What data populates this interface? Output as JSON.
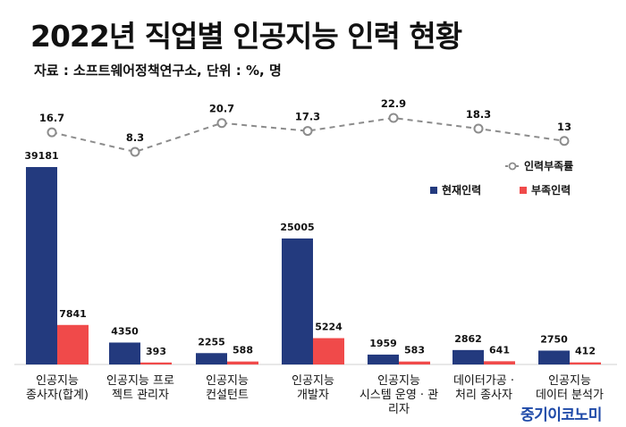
{
  "header": {
    "title": "2022년 직업별 인공지능 인력 현황",
    "subtitle": "자료 : 소프트웨어정책연구소, 단위 : %, 명"
  },
  "watermark": "중기이코노미",
  "chart_data": {
    "type": "bar",
    "categories": [
      [
        "인공지능",
        "종사자(합계)"
      ],
      [
        "인공지능 프로",
        "젝트 관리자"
      ],
      [
        "인공지능",
        "컨설턴트"
      ],
      [
        "인공지능",
        "개발자"
      ],
      [
        "인공지능",
        "시스템 운영 · 관",
        "리자"
      ],
      [
        "데이터가공 ·",
        "처리 종사자"
      ],
      [
        "인공지능",
        "데이터 분석가"
      ]
    ],
    "series": [
      {
        "name": "현재인력",
        "type": "bar",
        "color": "#233a7e",
        "values": [
          39181,
          4350,
          2255,
          25005,
          1959,
          2862,
          2750
        ]
      },
      {
        "name": "부족인력",
        "type": "bar",
        "color": "#f04a4a",
        "values": [
          7841,
          393,
          588,
          5224,
          583,
          641,
          412
        ]
      },
      {
        "name": "인력부족률",
        "type": "line",
        "color": "#8c8c8c",
        "values": [
          16.7,
          8.3,
          20.7,
          17.3,
          22.9,
          18.3,
          13
        ]
      }
    ],
    "bar_range": [
      0,
      39181
    ],
    "rate_range": [
      8.3,
      22.9
    ],
    "legend_position": "right",
    "grid": false
  },
  "colors": {
    "current": "#233a7e",
    "shortage": "#f04a4a",
    "rate_line": "#8c8c8c",
    "watermark": "#1f4aa8"
  }
}
